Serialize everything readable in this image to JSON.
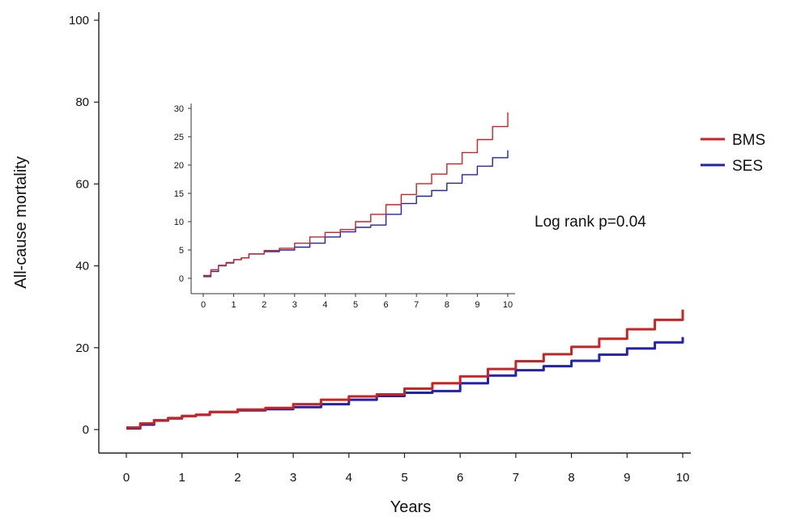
{
  "chart_data": [
    {
      "type": "line",
      "title": "",
      "xlabel": "Years",
      "ylabel": "All-cause mortality",
      "xlim": [
        0,
        10
      ],
      "ylim": [
        0,
        100
      ],
      "x_ticks": [
        0,
        1,
        2,
        3,
        4,
        5,
        6,
        7,
        8,
        9,
        10
      ],
      "y_ticks": [
        0,
        20,
        40,
        60,
        80,
        100
      ],
      "legend_position": "right",
      "annotation": "Log rank p=0.04",
      "series": [
        {
          "name": "BMS",
          "color": "#cc2222",
          "x": [
            0,
            0.25,
            0.5,
            0.75,
            1,
            1.25,
            1.5,
            2,
            2.5,
            3,
            3.5,
            4,
            4.5,
            5,
            5.5,
            6,
            6.5,
            7,
            7.5,
            8,
            8.5,
            9,
            9.5,
            10
          ],
          "y": [
            0.5,
            1.5,
            2.3,
            2.8,
            3.3,
            3.6,
            4.3,
            4.9,
            5.3,
            6.2,
            7.3,
            8.1,
            8.6,
            10.0,
            11.3,
            13.0,
            14.8,
            16.7,
            18.4,
            20.2,
            22.2,
            24.5,
            26.8,
            29.3
          ]
        },
        {
          "name": "SES",
          "color": "#2222aa",
          "x": [
            0,
            0.25,
            0.5,
            0.75,
            1,
            1.25,
            1.5,
            2,
            2.5,
            3,
            3.5,
            4,
            4.5,
            5,
            5.5,
            6,
            6.5,
            7,
            7.5,
            8,
            8.5,
            9,
            9.5,
            10
          ],
          "y": [
            0.3,
            1.2,
            2.2,
            2.7,
            3.3,
            3.6,
            4.3,
            4.7,
            5.0,
            5.5,
            6.2,
            7.3,
            8.2,
            9.0,
            9.4,
            11.3,
            13.2,
            14.5,
            15.5,
            16.8,
            18.3,
            19.8,
            21.3,
            22.6
          ]
        }
      ]
    },
    {
      "type": "line",
      "title": "",
      "xlabel": "",
      "ylabel": "",
      "xlim": [
        0,
        10
      ],
      "ylim": [
        0,
        30
      ],
      "x_ticks": [
        0,
        1,
        2,
        3,
        4,
        5,
        6,
        7,
        8,
        9,
        10
      ],
      "y_ticks": [
        0,
        5,
        10,
        15,
        20,
        25,
        30
      ],
      "series": [
        {
          "name": "BMS",
          "color": "#cc2222",
          "x": [
            0,
            0.25,
            0.5,
            0.75,
            1,
            1.25,
            1.5,
            2,
            2.5,
            3,
            3.5,
            4,
            4.5,
            5,
            5.5,
            6,
            6.5,
            7,
            7.5,
            8,
            8.5,
            9,
            9.5,
            10
          ],
          "y": [
            0.5,
            1.5,
            2.3,
            2.8,
            3.3,
            3.6,
            4.3,
            4.9,
            5.3,
            6.2,
            7.3,
            8.1,
            8.6,
            10.0,
            11.3,
            13.0,
            14.8,
            16.7,
            18.4,
            20.2,
            22.2,
            24.5,
            26.8,
            29.3
          ]
        },
        {
          "name": "SES",
          "color": "#2222aa",
          "x": [
            0,
            0.25,
            0.5,
            0.75,
            1,
            1.25,
            1.5,
            2,
            2.5,
            3,
            3.5,
            4,
            4.5,
            5,
            5.5,
            6,
            6.5,
            7,
            7.5,
            8,
            8.5,
            9,
            9.5,
            10
          ],
          "y": [
            0.3,
            1.2,
            2.2,
            2.7,
            3.3,
            3.6,
            4.3,
            4.7,
            5.0,
            5.5,
            6.2,
            7.3,
            8.2,
            9.0,
            9.4,
            11.3,
            13.2,
            14.5,
            15.5,
            16.8,
            18.3,
            19.8,
            21.3,
            22.6
          ]
        }
      ]
    }
  ]
}
